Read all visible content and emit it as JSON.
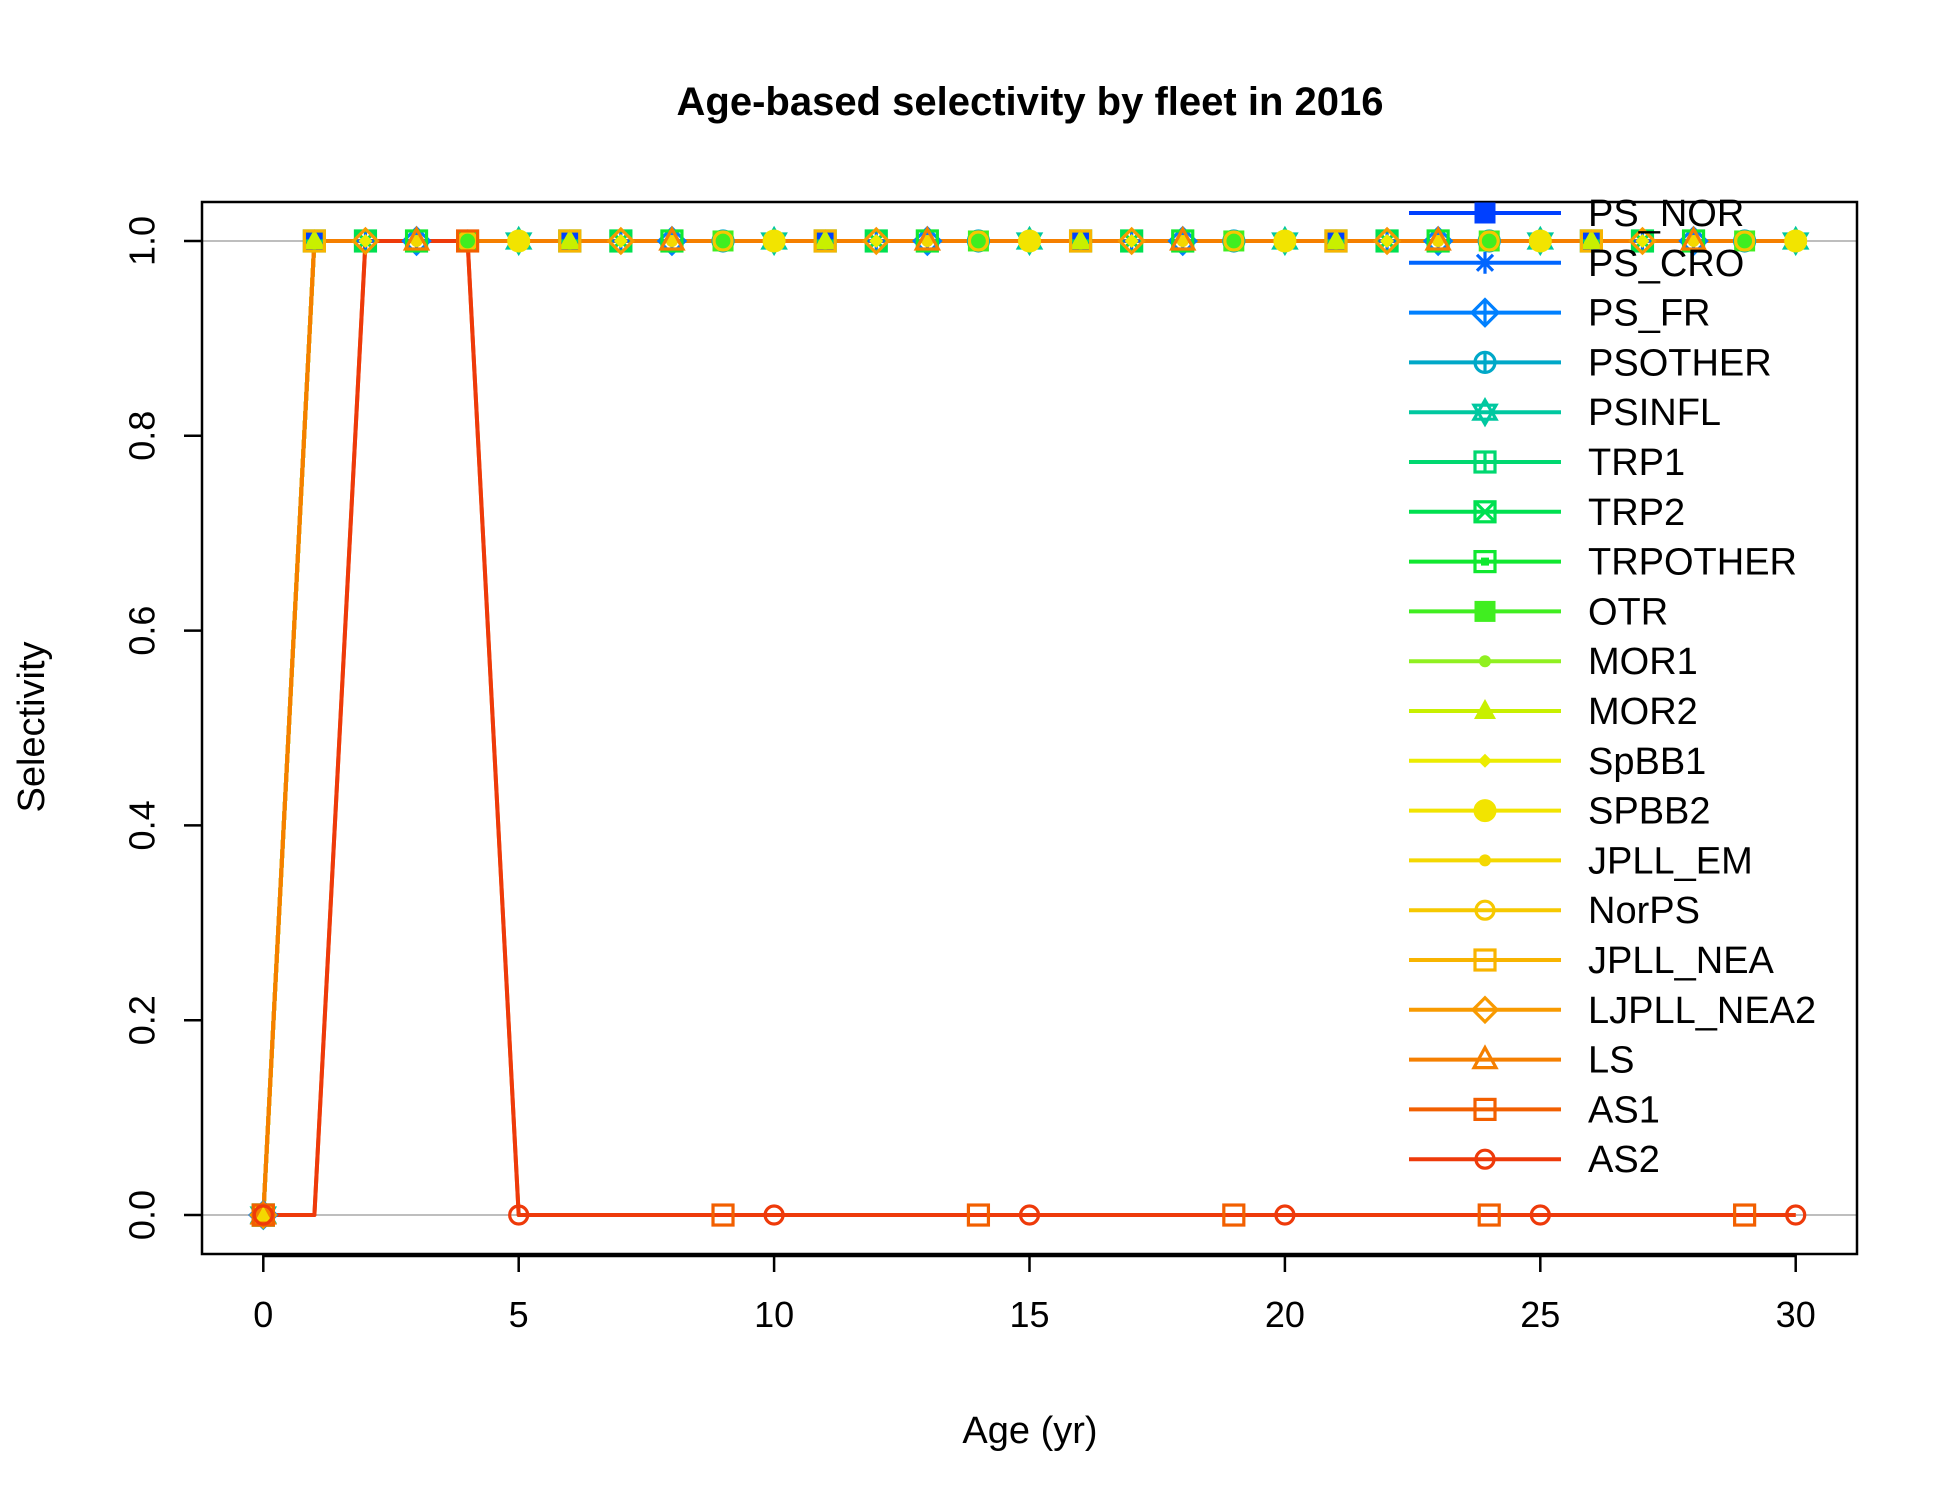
{
  "chart_data": {
    "type": "line",
    "title": "Age-based selectivity by fleet in 2016",
    "xlabel": "Age (yr)",
    "ylabel": "Selectivity",
    "xlim": [
      -1.2,
      31.2
    ],
    "ylim": [
      -0.04,
      1.04
    ],
    "xticks": [
      0,
      5,
      10,
      15,
      20,
      25,
      30
    ],
    "yticks": [
      0.0,
      0.2,
      0.4,
      0.6,
      0.8,
      1.0
    ],
    "xtick_labels": [
      "0",
      "5",
      "10",
      "15",
      "20",
      "25",
      "30"
    ],
    "ytick_labels": [
      "0.0",
      "0.2",
      "0.4",
      "0.6",
      "0.8",
      "1.0"
    ],
    "reference_lines_y": [
      0,
      1
    ],
    "reference_line_color": "#bebebe",
    "grid": false,
    "legend_position": "top-right",
    "x": [
      0,
      1,
      2,
      3,
      4,
      5,
      6,
      7,
      8,
      9,
      10,
      11,
      12,
      13,
      14,
      15,
      16,
      17,
      18,
      19,
      20,
      21,
      22,
      23,
      24,
      25,
      26,
      27,
      28,
      29,
      30
    ],
    "series": [
      {
        "name": "PS_NOR",
        "color": "#0040ff",
        "marker": "square-filled",
        "marker_offset": 1,
        "values": [
          0,
          1,
          1,
          1,
          1,
          1,
          1,
          1,
          1,
          1,
          1,
          1,
          1,
          1,
          1,
          1,
          1,
          1,
          1,
          1,
          1,
          1,
          1,
          1,
          1,
          1,
          1,
          1,
          1,
          1,
          1
        ]
      },
      {
        "name": "PS_CRO",
        "color": "#0066ff",
        "marker": "asterisk",
        "marker_offset": 2,
        "values": [
          0,
          1,
          1,
          1,
          1,
          1,
          1,
          1,
          1,
          1,
          1,
          1,
          1,
          1,
          1,
          1,
          1,
          1,
          1,
          1,
          1,
          1,
          1,
          1,
          1,
          1,
          1,
          1,
          1,
          1,
          1
        ]
      },
      {
        "name": "PS_FR",
        "color": "#0080ff",
        "marker": "diamond-plus",
        "marker_offset": 3,
        "values": [
          0,
          1,
          1,
          1,
          1,
          1,
          1,
          1,
          1,
          1,
          1,
          1,
          1,
          1,
          1,
          1,
          1,
          1,
          1,
          1,
          1,
          1,
          1,
          1,
          1,
          1,
          1,
          1,
          1,
          1,
          1
        ]
      },
      {
        "name": "PSOTHER",
        "color": "#00a8c8",
        "marker": "circle-plus",
        "marker_offset": 4,
        "values": [
          0,
          1,
          1,
          1,
          1,
          1,
          1,
          1,
          1,
          1,
          1,
          1,
          1,
          1,
          1,
          1,
          1,
          1,
          1,
          1,
          1,
          1,
          1,
          1,
          1,
          1,
          1,
          1,
          1,
          1,
          1
        ]
      },
      {
        "name": "PSINFL",
        "color": "#00c8a0",
        "marker": "star-of-david",
        "marker_offset": 0,
        "values": [
          0,
          1,
          1,
          1,
          1,
          1,
          1,
          1,
          1,
          1,
          1,
          1,
          1,
          1,
          1,
          1,
          1,
          1,
          1,
          1,
          1,
          1,
          1,
          1,
          1,
          1,
          1,
          1,
          1,
          1,
          1
        ]
      },
      {
        "name": "TRP1",
        "color": "#00d870",
        "marker": "square-plus",
        "marker_offset": 1,
        "values": [
          0,
          1,
          1,
          1,
          1,
          1,
          1,
          1,
          1,
          1,
          1,
          1,
          1,
          1,
          1,
          1,
          1,
          1,
          1,
          1,
          1,
          1,
          1,
          1,
          1,
          1,
          1,
          1,
          1,
          1,
          1
        ]
      },
      {
        "name": "TRP2",
        "color": "#00e050",
        "marker": "square-cross",
        "marker_offset": 2,
        "values": [
          0,
          1,
          1,
          1,
          1,
          1,
          1,
          1,
          1,
          1,
          1,
          1,
          1,
          1,
          1,
          1,
          1,
          1,
          1,
          1,
          1,
          1,
          1,
          1,
          1,
          1,
          1,
          1,
          1,
          1,
          1
        ]
      },
      {
        "name": "TRPOTHER",
        "color": "#10e830",
        "marker": "square-open-filled",
        "marker_offset": 3,
        "values": [
          0,
          1,
          1,
          1,
          1,
          1,
          1,
          1,
          1,
          1,
          1,
          1,
          1,
          1,
          1,
          1,
          1,
          1,
          1,
          1,
          1,
          1,
          1,
          1,
          1,
          1,
          1,
          1,
          1,
          1,
          1
        ]
      },
      {
        "name": "OTR",
        "color": "#40ee20",
        "marker": "square-filled",
        "marker_offset": 4,
        "values": [
          0,
          1,
          1,
          1,
          1,
          1,
          1,
          1,
          1,
          1,
          1,
          1,
          1,
          1,
          1,
          1,
          1,
          1,
          1,
          1,
          1,
          1,
          1,
          1,
          1,
          1,
          1,
          1,
          1,
          1,
          1
        ]
      },
      {
        "name": "MOR1",
        "color": "#90f020",
        "marker": "circle-small",
        "marker_offset": 0,
        "values": [
          0,
          1,
          1,
          1,
          1,
          1,
          1,
          1,
          1,
          1,
          1,
          1,
          1,
          1,
          1,
          1,
          1,
          1,
          1,
          1,
          1,
          1,
          1,
          1,
          1,
          1,
          1,
          1,
          1,
          1,
          1
        ]
      },
      {
        "name": "MOR2",
        "color": "#c8f000",
        "marker": "triangle-filled",
        "marker_offset": 1,
        "values": [
          0,
          1,
          1,
          1,
          1,
          1,
          1,
          1,
          1,
          1,
          1,
          1,
          1,
          1,
          1,
          1,
          1,
          1,
          1,
          1,
          1,
          1,
          1,
          1,
          1,
          1,
          1,
          1,
          1,
          1,
          1
        ]
      },
      {
        "name": "SpBB1",
        "color": "#ecec00",
        "marker": "diamond-filled",
        "marker_offset": 2,
        "values": [
          0,
          1,
          1,
          1,
          1,
          1,
          1,
          1,
          1,
          1,
          1,
          1,
          1,
          1,
          1,
          1,
          1,
          1,
          1,
          1,
          1,
          1,
          1,
          1,
          1,
          1,
          1,
          1,
          1,
          1,
          1
        ]
      },
      {
        "name": "SPBB2",
        "color": "#f2e400",
        "marker": "circle-filled",
        "marker_offset": 0,
        "values": [
          0,
          1,
          1,
          1,
          1,
          1,
          1,
          1,
          1,
          1,
          1,
          1,
          1,
          1,
          1,
          1,
          1,
          1,
          1,
          1,
          1,
          1,
          1,
          1,
          1,
          1,
          1,
          1,
          1,
          1,
          1
        ]
      },
      {
        "name": "JPLL_EM",
        "color": "#f4d800",
        "marker": "circle-small",
        "marker_offset": 3,
        "values": [
          0,
          1,
          1,
          1,
          1,
          1,
          1,
          1,
          1,
          1,
          1,
          1,
          1,
          1,
          1,
          1,
          1,
          1,
          1,
          1,
          1,
          1,
          1,
          1,
          1,
          1,
          1,
          1,
          1,
          1,
          1
        ]
      },
      {
        "name": "NorPS",
        "color": "#f6c800",
        "marker": "circle-open",
        "marker_offset": 4,
        "values": [
          0,
          1,
          1,
          1,
          1,
          1,
          1,
          1,
          1,
          1,
          1,
          1,
          1,
          1,
          1,
          1,
          1,
          1,
          1,
          1,
          1,
          1,
          1,
          1,
          1,
          1,
          1,
          1,
          1,
          1,
          1
        ]
      },
      {
        "name": "JPLL_NEA",
        "color": "#f8b400",
        "marker": "square-open",
        "marker_offset": 1,
        "values": [
          0,
          1,
          1,
          1,
          1,
          1,
          1,
          1,
          1,
          1,
          1,
          1,
          1,
          1,
          1,
          1,
          1,
          1,
          1,
          1,
          1,
          1,
          1,
          1,
          1,
          1,
          1,
          1,
          1,
          1,
          1
        ]
      },
      {
        "name": "LJPLL_NEA2",
        "color": "#f89a00",
        "marker": "diamond-open",
        "marker_offset": 2,
        "values": [
          0,
          1,
          1,
          1,
          1,
          1,
          1,
          1,
          1,
          1,
          1,
          1,
          1,
          1,
          1,
          1,
          1,
          1,
          1,
          1,
          1,
          1,
          1,
          1,
          1,
          1,
          1,
          1,
          1,
          1,
          1
        ]
      },
      {
        "name": "LS",
        "color": "#f57f00",
        "marker": "triangle-open",
        "marker_offset": 3,
        "values": [
          0,
          1,
          1,
          1,
          1,
          1,
          1,
          1,
          1,
          1,
          1,
          1,
          1,
          1,
          1,
          1,
          1,
          1,
          1,
          1,
          1,
          1,
          1,
          1,
          1,
          1,
          1,
          1,
          1,
          1,
          1
        ]
      },
      {
        "name": "AS1",
        "color": "#f25f00",
        "marker": "square-open",
        "marker_offset": 4,
        "values": [
          0,
          0,
          1,
          1,
          1,
          0,
          0,
          0,
          0,
          0,
          0,
          0,
          0,
          0,
          0,
          0,
          0,
          0,
          0,
          0,
          0,
          0,
          0,
          0,
          0,
          0,
          0,
          0,
          0,
          0,
          0
        ]
      },
      {
        "name": "AS2",
        "color": "#ee3a0a",
        "marker": "circle-open",
        "marker_offset": 0,
        "values": [
          0,
          0,
          1,
          1,
          1,
          0,
          0,
          0,
          0,
          0,
          0,
          0,
          0,
          0,
          0,
          0,
          0,
          0,
          0,
          0,
          0,
          0,
          0,
          0,
          0,
          0,
          0,
          0,
          0,
          0,
          0
        ]
      }
    ]
  }
}
